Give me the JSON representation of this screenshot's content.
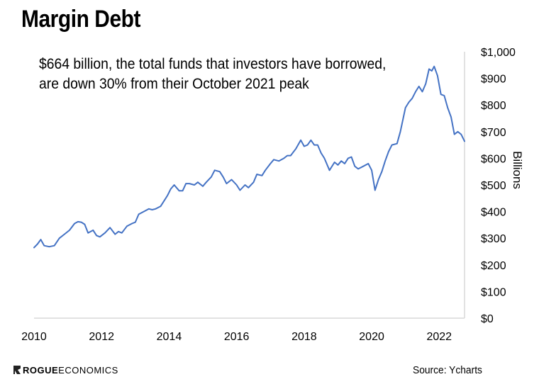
{
  "header": {
    "title": "Margin Debt"
  },
  "annotation": {
    "line1": "$664 billion, the total funds that investors have borrowed,",
    "line2": "are down 30% from their October 2021 peak"
  },
  "footer": {
    "logo_bold": "ROGUE",
    "logo_rest": " ECONOMICS",
    "source": "Source: Ycharts"
  },
  "colors": {
    "line": "#4472C4",
    "axis": "#D9D9D9"
  },
  "chart_data": {
    "type": "line",
    "title": "Margin Debt",
    "ylabel": "Billions",
    "xlim": [
      2010,
      2022.75
    ],
    "ylim": [
      0,
      1000
    ],
    "x_ticks": [
      2010,
      2012,
      2014,
      2016,
      2018,
      2020,
      2022
    ],
    "x_tick_labels": [
      "2010",
      "2012",
      "2014",
      "2016",
      "2018",
      "2020",
      "2022"
    ],
    "y_ticks": [
      0,
      100,
      200,
      300,
      400,
      500,
      600,
      700,
      800,
      900,
      1000
    ],
    "y_tick_labels": [
      "$0",
      "$100",
      "$200",
      "$300",
      "$400",
      "$500",
      "$600",
      "$700",
      "$800",
      "$900",
      "$1,000"
    ],
    "y_axis_position": "right",
    "grid": false,
    "series": [
      {
        "x": [
          2010.0,
          2010.1,
          2010.2,
          2010.3,
          2010.45,
          2010.6,
          2010.75,
          2010.9,
          2011.05,
          2011.2,
          2011.3,
          2011.4,
          2011.5,
          2011.6,
          2011.75,
          2011.85,
          2011.95,
          2012.1,
          2012.25,
          2012.4,
          2012.5,
          2012.6,
          2012.75,
          2012.9,
          2013.0,
          2013.1,
          2013.25,
          2013.4,
          2013.5,
          2013.6,
          2013.75,
          2013.85,
          2013.95,
          2014.05,
          2014.15,
          2014.3,
          2014.4,
          2014.5,
          2014.6,
          2014.75,
          2014.85,
          2015.0,
          2015.1,
          2015.25,
          2015.35,
          2015.5,
          2015.6,
          2015.7,
          2015.85,
          2016.0,
          2016.1,
          2016.25,
          2016.35,
          2016.5,
          2016.6,
          2016.75,
          2016.85,
          2017.0,
          2017.1,
          2017.25,
          2017.4,
          2017.5,
          2017.6,
          2017.75,
          2017.9,
          2018.0,
          2018.1,
          2018.2,
          2018.3,
          2018.4,
          2018.5,
          2018.6,
          2018.75,
          2018.9,
          2019.0,
          2019.1,
          2019.2,
          2019.3,
          2019.4,
          2019.5,
          2019.6,
          2019.75,
          2019.9,
          2020.0,
          2020.1,
          2020.2,
          2020.3,
          2020.4,
          2020.5,
          2020.6,
          2020.75,
          2020.85,
          2021.0,
          2021.1,
          2021.2,
          2021.3,
          2021.4,
          2021.5,
          2021.6,
          2021.7,
          2021.78,
          2021.85,
          2021.95,
          2022.05,
          2022.15,
          2022.25,
          2022.35,
          2022.45,
          2022.55,
          2022.65,
          2022.75
        ],
        "values": [
          265,
          278,
          295,
          272,
          268,
          272,
          300,
          315,
          330,
          355,
          362,
          360,
          352,
          320,
          330,
          310,
          305,
          320,
          340,
          315,
          325,
          320,
          345,
          355,
          360,
          390,
          400,
          410,
          407,
          410,
          420,
          440,
          460,
          485,
          500,
          478,
          478,
          505,
          505,
          500,
          510,
          495,
          510,
          530,
          555,
          550,
          530,
          505,
          520,
          500,
          480,
          500,
          490,
          510,
          540,
          535,
          555,
          580,
          595,
          590,
          600,
          610,
          610,
          635,
          668,
          645,
          650,
          668,
          650,
          650,
          620,
          600,
          555,
          585,
          575,
          590,
          580,
          600,
          605,
          570,
          560,
          570,
          580,
          555,
          480,
          520,
          550,
          590,
          625,
          650,
          655,
          700,
          790,
          810,
          825,
          850,
          870,
          850,
          880,
          935,
          928,
          945,
          910,
          840,
          835,
          790,
          755,
          690,
          700,
          690,
          664
        ]
      }
    ]
  }
}
